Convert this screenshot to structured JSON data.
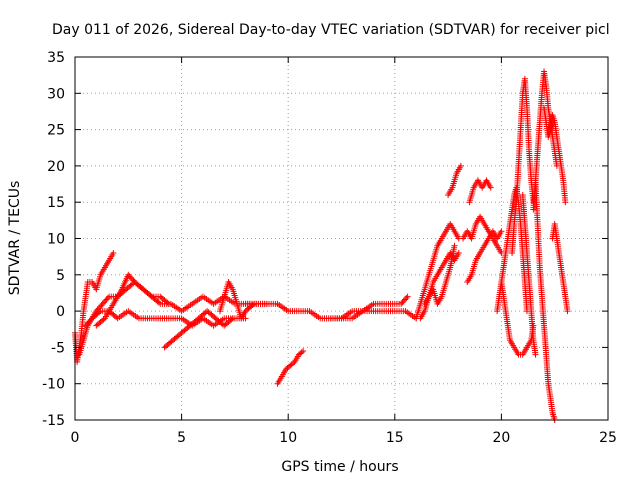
{
  "chart_data": {
    "type": "scatter",
    "title": "Day 011 of 2026, Sidereal Day-to-day VTEC variation (SDTVAR) for receiver picl",
    "xlabel": "GPS time / hours",
    "ylabel": "SDTVAR / TECUs",
    "xlim": [
      0,
      25
    ],
    "ylim": [
      -15,
      35
    ],
    "xticks": [
      0,
      5,
      10,
      15,
      20,
      25
    ],
    "yticks": [
      -15,
      -10,
      -5,
      0,
      5,
      10,
      15,
      20,
      25,
      30,
      35
    ],
    "grid": true,
    "marker": "+",
    "series": [
      {
        "name": "SDTVAR",
        "color": "#ff0000",
        "segments": [
          [
            [
              0.0,
              -3
            ],
            [
              0.1,
              -7
            ],
            [
              0.2,
              -5
            ],
            [
              0.3,
              -3
            ],
            [
              0.4,
              0
            ],
            [
              0.5,
              2
            ],
            [
              0.6,
              4
            ],
            [
              0.8,
              4
            ],
            [
              1.0,
              3
            ],
            [
              1.2,
              5
            ],
            [
              1.4,
              6
            ],
            [
              1.6,
              7
            ],
            [
              1.8,
              8
            ]
          ],
          [
            [
              0.2,
              -6
            ],
            [
              0.4,
              -4
            ],
            [
              0.6,
              -2
            ],
            [
              0.8,
              -1
            ],
            [
              1.0,
              0
            ],
            [
              1.3,
              1
            ],
            [
              1.6,
              2
            ],
            [
              2.0,
              2
            ],
            [
              2.4,
              3
            ],
            [
              2.8,
              4
            ],
            [
              3.2,
              3
            ],
            [
              3.6,
              2
            ],
            [
              4.0,
              1
            ],
            [
              4.5,
              1
            ],
            [
              5.0,
              0
            ],
            [
              5.5,
              1
            ],
            [
              6.0,
              2
            ],
            [
              6.5,
              1
            ],
            [
              7.0,
              2
            ],
            [
              7.5,
              1
            ],
            [
              8.0,
              1
            ],
            [
              8.5,
              1
            ],
            [
              9.0,
              1
            ]
          ],
          [
            [
              0.5,
              -2
            ],
            [
              0.8,
              -1
            ],
            [
              1.2,
              0
            ],
            [
              1.6,
              0
            ],
            [
              2.0,
              -1
            ],
            [
              2.5,
              0
            ],
            [
              3.0,
              -1
            ],
            [
              3.5,
              -1
            ],
            [
              4.0,
              -1
            ],
            [
              4.5,
              -1
            ],
            [
              5.0,
              -1
            ],
            [
              5.5,
              -2
            ],
            [
              6.0,
              -1
            ],
            [
              6.5,
              -2
            ],
            [
              7.0,
              -1
            ],
            [
              7.5,
              -1
            ],
            [
              8.0,
              -1
            ]
          ],
          [
            [
              1.0,
              -2
            ],
            [
              1.4,
              -1
            ],
            [
              1.8,
              1
            ],
            [
              2.2,
              3
            ],
            [
              2.5,
              5
            ],
            [
              2.8,
              4
            ],
            [
              3.2,
              3
            ],
            [
              3.6,
              2
            ],
            [
              4.0,
              2
            ],
            [
              4.4,
              1
            ]
          ],
          [
            [
              4.2,
              -5
            ],
            [
              4.6,
              -4
            ],
            [
              5.0,
              -3
            ],
            [
              5.4,
              -2
            ],
            [
              5.8,
              -1
            ],
            [
              6.2,
              0
            ],
            [
              6.6,
              -1
            ],
            [
              7.0,
              -2
            ],
            [
              7.4,
              -1
            ]
          ],
          [
            [
              6.8,
              0
            ],
            [
              7.0,
              2
            ],
            [
              7.2,
              4
            ],
            [
              7.4,
              3
            ],
            [
              7.6,
              1
            ],
            [
              7.8,
              -1
            ],
            [
              8.0,
              0
            ],
            [
              8.4,
              1
            ]
          ],
          [
            [
              8.0,
              1
            ],
            [
              8.5,
              1
            ],
            [
              9.0,
              1
            ],
            [
              9.5,
              1
            ],
            [
              10.0,
              0
            ],
            [
              10.5,
              0
            ],
            [
              11.0,
              0
            ],
            [
              11.5,
              -1
            ],
            [
              12.0,
              -1
            ],
            [
              12.5,
              -1
            ],
            [
              13.0,
              -1
            ],
            [
              13.5,
              0
            ],
            [
              14.0,
              0
            ],
            [
              14.5,
              0
            ],
            [
              15.0,
              0
            ],
            [
              15.5,
              0
            ],
            [
              16.0,
              -1
            ]
          ],
          [
            [
              9.5,
              -10
            ],
            [
              9.7,
              -9
            ],
            [
              9.9,
              -8
            ],
            [
              10.1,
              -7.5
            ],
            [
              10.3,
              -7
            ],
            [
              10.5,
              -6
            ],
            [
              10.7,
              -5.5
            ]
          ],
          [
            [
              12.0,
              -1
            ],
            [
              12.5,
              -1
            ],
            [
              13.0,
              0
            ],
            [
              13.5,
              0
            ],
            [
              14.0,
              1
            ],
            [
              14.5,
              1
            ],
            [
              15.0,
              1
            ],
            [
              15.3,
              1
            ],
            [
              15.6,
              2
            ]
          ],
          [
            [
              16.0,
              -1
            ],
            [
              16.2,
              1
            ],
            [
              16.4,
              3
            ],
            [
              16.6,
              5
            ],
            [
              16.8,
              7
            ],
            [
              17.0,
              9
            ],
            [
              17.2,
              10
            ],
            [
              17.4,
              11
            ],
            [
              17.6,
              12
            ],
            [
              17.8,
              11
            ],
            [
              18.0,
              10
            ]
          ],
          [
            [
              16.2,
              -1
            ],
            [
              16.4,
              0
            ],
            [
              16.6,
              2
            ],
            [
              16.8,
              4
            ],
            [
              17.0,
              5
            ],
            [
              17.2,
              6
            ],
            [
              17.4,
              7
            ],
            [
              17.6,
              8
            ],
            [
              17.8,
              7
            ],
            [
              18.0,
              8
            ]
          ],
          [
            [
              16.4,
              1
            ],
            [
              16.6,
              2
            ],
            [
              16.8,
              3
            ],
            [
              17.0,
              1
            ],
            [
              17.2,
              2
            ],
            [
              17.4,
              4
            ],
            [
              17.6,
              6
            ],
            [
              17.8,
              9
            ]
          ],
          [
            [
              17.5,
              16
            ],
            [
              17.7,
              17
            ],
            [
              17.9,
              19
            ],
            [
              18.1,
              20
            ]
          ],
          [
            [
              18.5,
              15
            ],
            [
              18.7,
              17
            ],
            [
              18.9,
              18
            ],
            [
              19.1,
              17
            ],
            [
              19.3,
              18
            ],
            [
              19.5,
              17
            ]
          ],
          [
            [
              18.2,
              10
            ],
            [
              18.4,
              11
            ],
            [
              18.6,
              10
            ],
            [
              18.8,
              12
            ],
            [
              19.0,
              13
            ],
            [
              19.2,
              12
            ],
            [
              19.4,
              11
            ],
            [
              19.6,
              10
            ],
            [
              19.8,
              9
            ],
            [
              20.0,
              8
            ]
          ],
          [
            [
              18.4,
              4
            ],
            [
              18.6,
              5
            ],
            [
              18.8,
              7
            ],
            [
              19.0,
              8
            ],
            [
              19.2,
              9
            ],
            [
              19.4,
              10
            ],
            [
              19.6,
              11
            ],
            [
              19.8,
              10
            ],
            [
              20.0,
              11
            ]
          ],
          [
            [
              19.8,
              0
            ],
            [
              19.9,
              2
            ],
            [
              20.0,
              4
            ],
            [
              20.1,
              6
            ],
            [
              20.2,
              8
            ],
            [
              20.3,
              10
            ],
            [
              20.4,
              12
            ],
            [
              20.5,
              14
            ],
            [
              20.6,
              16
            ],
            [
              20.7,
              17
            ],
            [
              20.8,
              15
            ],
            [
              20.9,
              12
            ],
            [
              21.0,
              8
            ],
            [
              21.1,
              4
            ],
            [
              21.2,
              0
            ]
          ],
          [
            [
              20.0,
              4
            ],
            [
              20.1,
              2
            ],
            [
              20.2,
              0
            ],
            [
              20.3,
              -2
            ],
            [
              20.4,
              -4
            ],
            [
              20.6,
              -5
            ],
            [
              20.8,
              -6
            ],
            [
              21.0,
              -6
            ],
            [
              21.2,
              -5
            ],
            [
              21.4,
              -4
            ],
            [
              21.5,
              -2
            ]
          ],
          [
            [
              20.5,
              8
            ],
            [
              20.6,
              12
            ],
            [
              20.7,
              15
            ],
            [
              20.8,
              20
            ],
            [
              20.9,
              25
            ],
            [
              21.0,
              30
            ],
            [
              21.1,
              32
            ],
            [
              21.2,
              28
            ],
            [
              21.3,
              22
            ],
            [
              21.4,
              18
            ],
            [
              21.5,
              15
            ]
          ],
          [
            [
              21.0,
              16
            ],
            [
              21.1,
              12
            ],
            [
              21.2,
              8
            ],
            [
              21.3,
              4
            ],
            [
              21.4,
              0
            ],
            [
              21.5,
              -4
            ],
            [
              21.6,
              -6
            ]
          ],
          [
            [
              21.5,
              14
            ],
            [
              21.6,
              18
            ],
            [
              21.7,
              22
            ],
            [
              21.8,
              26
            ],
            [
              21.9,
              30
            ],
            [
              22.0,
              33
            ],
            [
              22.1,
              31
            ],
            [
              22.2,
              28
            ],
            [
              22.3,
              26
            ],
            [
              22.4,
              24
            ],
            [
              22.5,
              22
            ],
            [
              22.6,
              20
            ]
          ],
          [
            [
              21.6,
              18
            ],
            [
              21.7,
              12
            ],
            [
              21.8,
              6
            ],
            [
              21.9,
              2
            ],
            [
              22.0,
              -2
            ],
            [
              22.1,
              -6
            ],
            [
              22.2,
              -10
            ],
            [
              22.3,
              -12
            ],
            [
              22.4,
              -14
            ],
            [
              22.5,
              -15
            ]
          ],
          [
            [
              22.0,
              28
            ],
            [
              22.1,
              26
            ],
            [
              22.2,
              24
            ],
            [
              22.3,
              25
            ],
            [
              22.4,
              27
            ],
            [
              22.5,
              26
            ],
            [
              22.6,
              24
            ],
            [
              22.7,
              22
            ],
            [
              22.8,
              20
            ],
            [
              22.9,
              18
            ],
            [
              23.0,
              15
            ]
          ],
          [
            [
              22.4,
              10
            ],
            [
              22.5,
              12
            ],
            [
              22.6,
              10
            ],
            [
              22.7,
              8
            ],
            [
              22.8,
              6
            ],
            [
              22.9,
              4
            ],
            [
              23.0,
              2
            ],
            [
              23.1,
              0
            ]
          ]
        ]
      }
    ]
  }
}
